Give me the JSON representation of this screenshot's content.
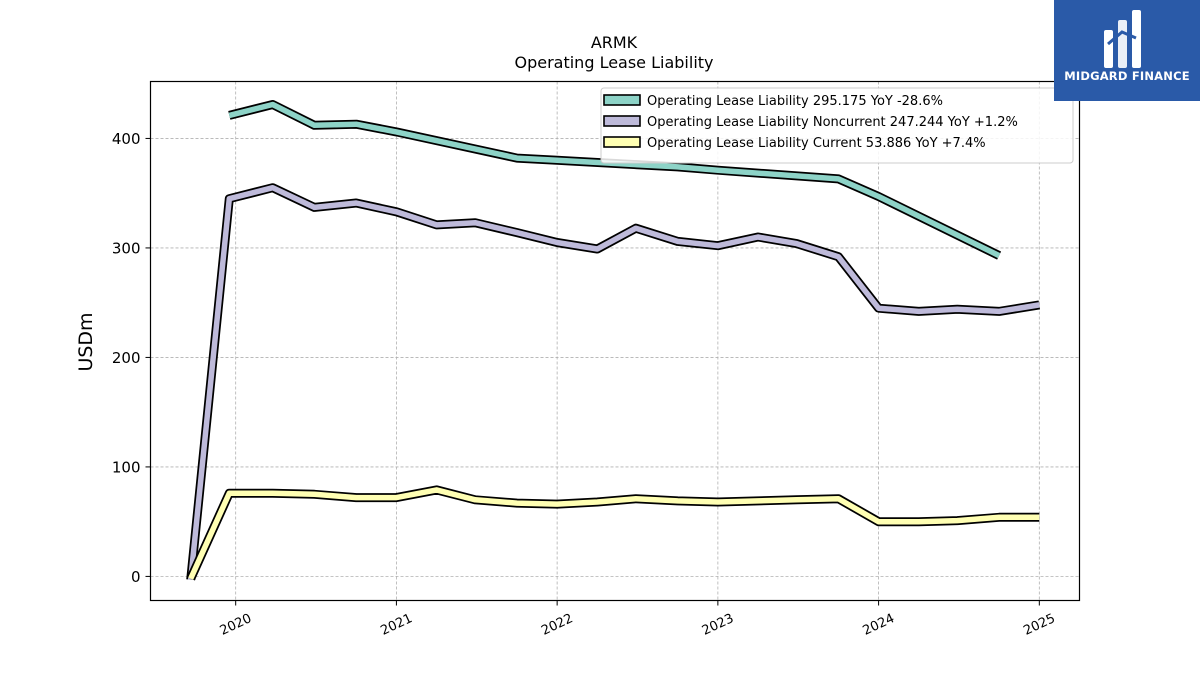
{
  "chart_data": {
    "type": "line",
    "title": "ARMK",
    "subtitle": "Operating Lease Liability",
    "ylabel": "USDm",
    "xlabel": "",
    "ylim": [
      -22,
      452
    ],
    "xlim": [
      2019.47,
      2025.25
    ],
    "yticks": [
      0,
      100,
      200,
      300,
      400
    ],
    "xticks": [
      {
        "value": 2020,
        "label": "2020"
      },
      {
        "value": 2021,
        "label": "2021"
      },
      {
        "value": 2022,
        "label": "2022"
      },
      {
        "value": 2023,
        "label": "2023"
      },
      {
        "value": 2024,
        "label": "2024"
      },
      {
        "value": 2025,
        "label": "2025"
      }
    ],
    "grid": true,
    "legend_position": "top-right",
    "series": [
      {
        "name": "Operating Lease Liability",
        "legend_label": "Operating Lease Liability  295.175 YoY -28.6%",
        "color": "#8dd3c7",
        "points": [
          [
            2019.96,
            421
          ],
          [
            2020.23,
            431
          ],
          [
            2020.49,
            412
          ],
          [
            2020.75,
            413
          ],
          [
            2021.0,
            406
          ],
          [
            2021.75,
            382
          ],
          [
            2022.0,
            380
          ],
          [
            2022.75,
            374
          ],
          [
            2023.0,
            371
          ],
          [
            2023.75,
            363
          ],
          [
            2024.0,
            347
          ],
          [
            2024.75,
            293
          ]
        ]
      },
      {
        "name": "Operating Lease Liability Noncurrent",
        "legend_label": "Operating Lease Liability Noncurrent  247.244 YoY +1.2%",
        "color": "#bebada",
        "points": [
          [
            2019.72,
            -3
          ],
          [
            2019.96,
            345
          ],
          [
            2020.23,
            355
          ],
          [
            2020.49,
            337
          ],
          [
            2020.75,
            341
          ],
          [
            2021.0,
            333
          ],
          [
            2021.25,
            321
          ],
          [
            2021.49,
            323
          ],
          [
            2021.75,
            314
          ],
          [
            2022.0,
            305
          ],
          [
            2022.25,
            299
          ],
          [
            2022.49,
            318
          ],
          [
            2022.75,
            306
          ],
          [
            2023.0,
            302
          ],
          [
            2023.25,
            310
          ],
          [
            2023.49,
            304
          ],
          [
            2023.75,
            292
          ],
          [
            2024.0,
            245
          ],
          [
            2024.25,
            242
          ],
          [
            2024.49,
            244
          ],
          [
            2024.75,
            242
          ],
          [
            2025.0,
            248
          ]
        ]
      },
      {
        "name": "Operating Lease Liability Current",
        "legend_label": "Operating Lease Liability Current  53.886 YoY +7.4%",
        "color": "#ffffb3",
        "points": [
          [
            2019.72,
            -2
          ],
          [
            2019.96,
            76
          ],
          [
            2020.23,
            76
          ],
          [
            2020.49,
            75
          ],
          [
            2020.75,
            72
          ],
          [
            2021.0,
            72
          ],
          [
            2021.25,
            79
          ],
          [
            2021.49,
            70
          ],
          [
            2021.75,
            67
          ],
          [
            2022.0,
            66
          ],
          [
            2022.25,
            68
          ],
          [
            2022.49,
            71
          ],
          [
            2022.75,
            69
          ],
          [
            2023.0,
            68
          ],
          [
            2023.25,
            69
          ],
          [
            2023.49,
            70
          ],
          [
            2023.75,
            71
          ],
          [
            2024.0,
            50
          ],
          [
            2024.25,
            50
          ],
          [
            2024.49,
            51
          ],
          [
            2024.75,
            54
          ],
          [
            2025.0,
            54
          ]
        ]
      }
    ]
  },
  "logo": {
    "text": "MIDGARD FINANCE",
    "background": "#2a5aa8"
  }
}
